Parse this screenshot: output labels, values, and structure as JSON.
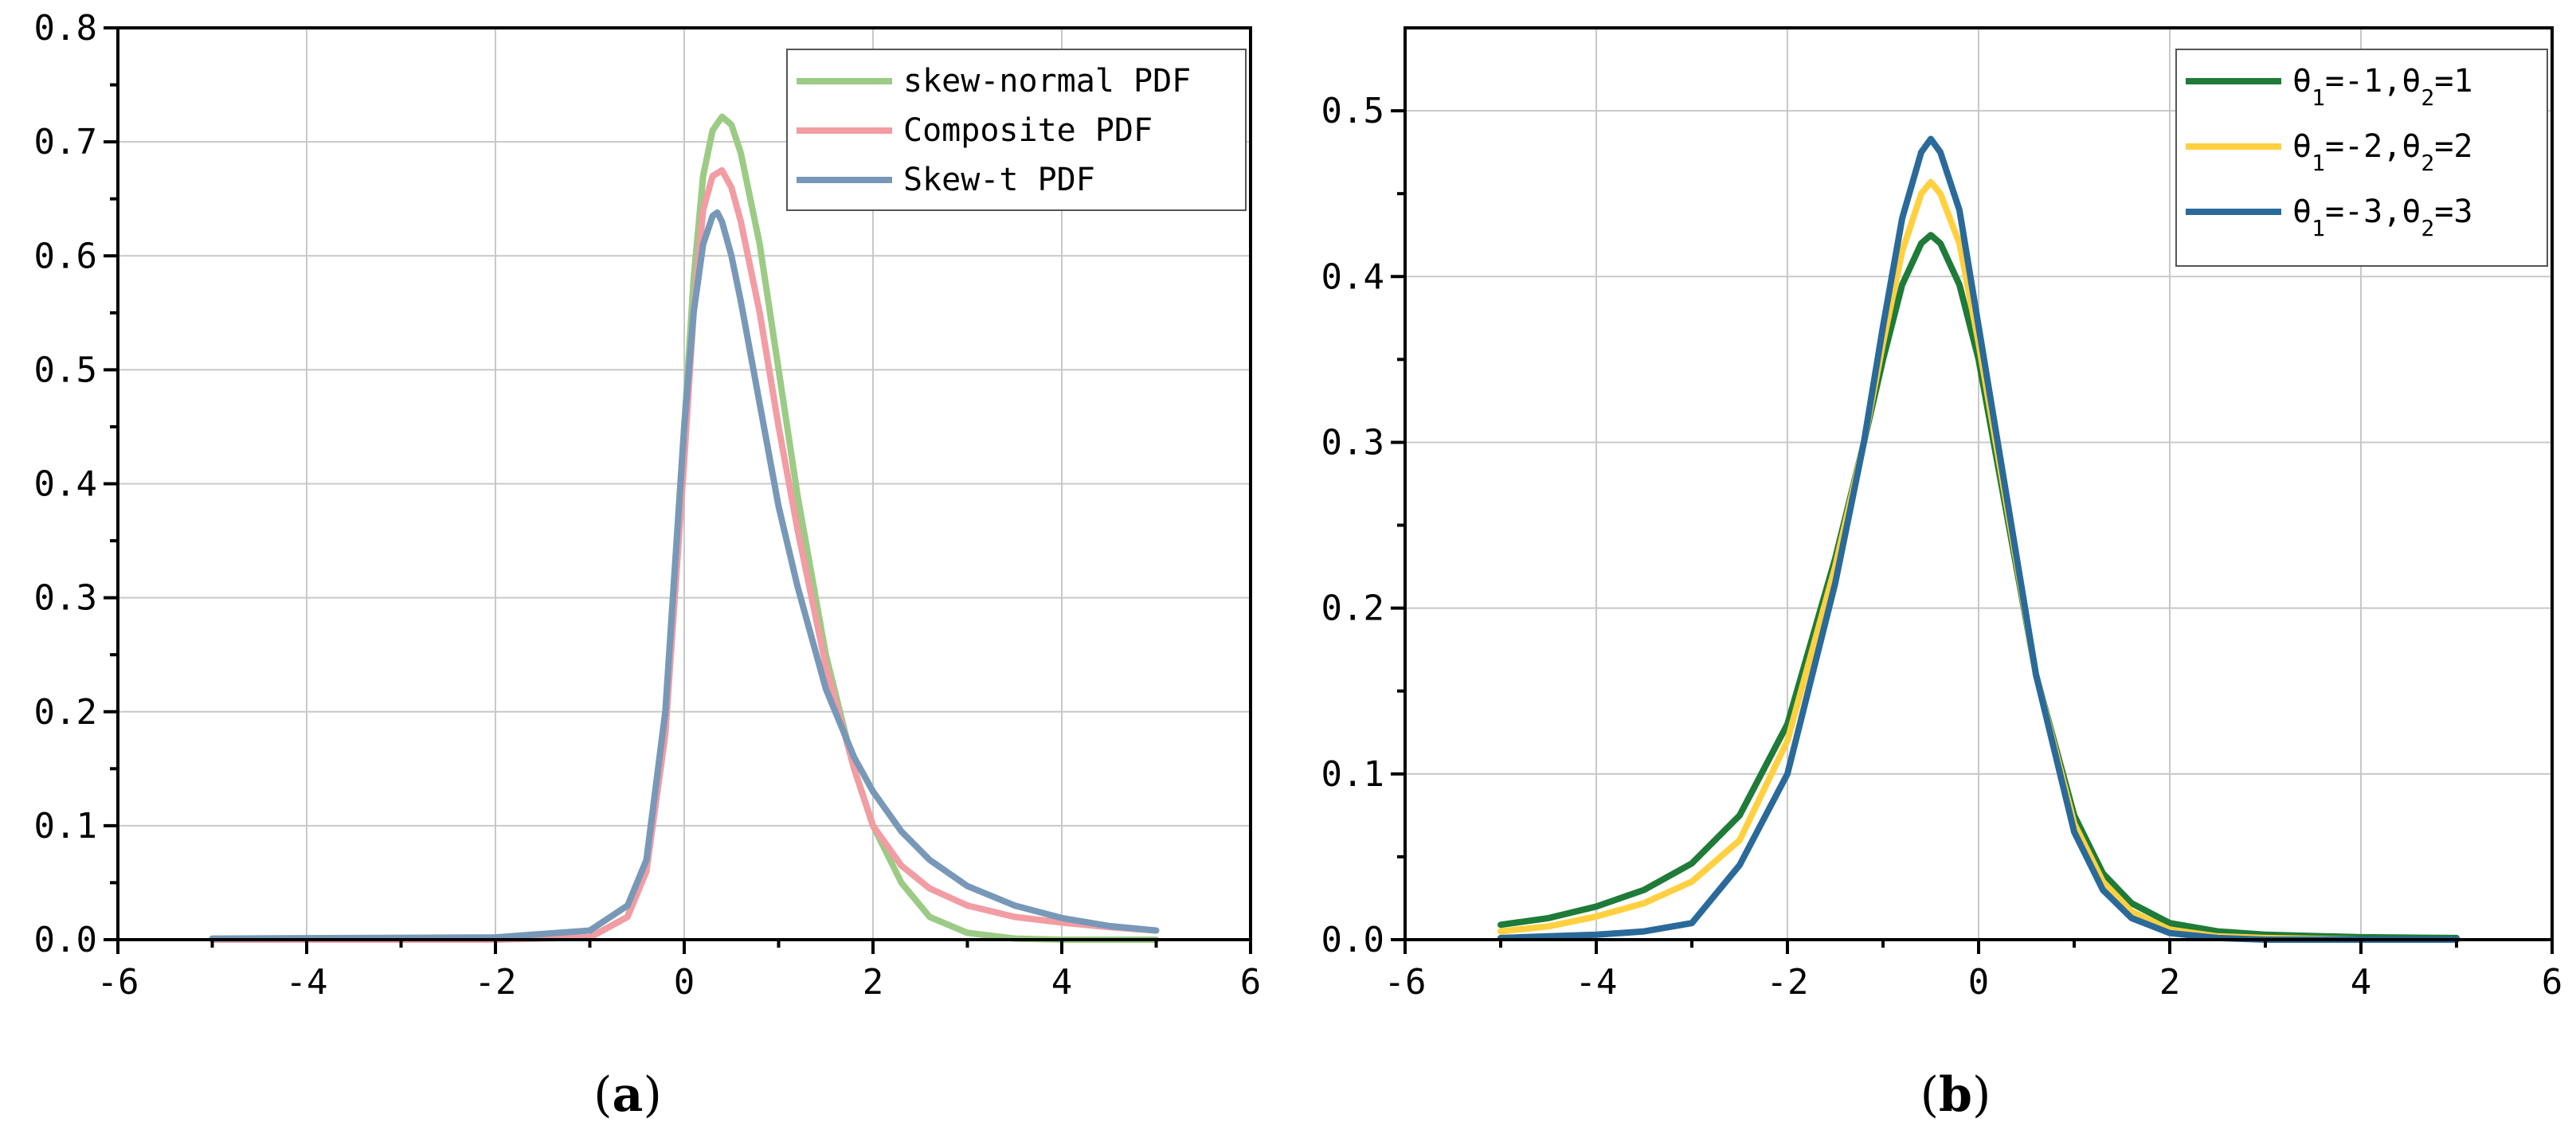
{
  "chart_data": [
    {
      "type": "line",
      "caption": {
        "open": "(",
        "letter": "a",
        "close": ")"
      },
      "xlim": [
        -6,
        6
      ],
      "ylim": [
        0,
        0.8
      ],
      "xticks": [
        -6,
        -4,
        -2,
        0,
        2,
        4,
        6
      ],
      "xtick_labels": [
        "-6",
        "-4",
        "-2",
        "0",
        "2",
        "4",
        "6"
      ],
      "yticks": [
        0,
        0.1,
        0.2,
        0.3,
        0.4,
        0.5,
        0.6,
        0.7,
        0.8
      ],
      "ytick_labels": [
        "0.0",
        "0.1",
        "0.2",
        "0.3",
        "0.4",
        "0.5",
        "0.6",
        "0.7",
        "0.8"
      ],
      "grid": true,
      "legend_position": "top-right",
      "series": [
        {
          "name": "skew-normal PDF",
          "color": "#9bcb84",
          "x": [
            -5,
            -2,
            -1,
            -0.6,
            -0.4,
            -0.2,
            0,
            0.1,
            0.2,
            0.3,
            0.4,
            0.5,
            0.6,
            0.8,
            1.0,
            1.2,
            1.5,
            1.8,
            2.0,
            2.3,
            2.6,
            3.0,
            3.5,
            4,
            5
          ],
          "y": [
            0,
            0,
            0.002,
            0.02,
            0.07,
            0.2,
            0.45,
            0.58,
            0.67,
            0.71,
            0.722,
            0.715,
            0.69,
            0.61,
            0.5,
            0.39,
            0.25,
            0.15,
            0.1,
            0.05,
            0.02,
            0.006,
            0.001,
            0,
            0
          ]
        },
        {
          "name": "Composite PDF",
          "color": "#f29ca3",
          "x": [
            -5,
            -2,
            -1,
            -0.6,
            -0.4,
            -0.2,
            0,
            0.1,
            0.2,
            0.3,
            0.4,
            0.5,
            0.6,
            0.8,
            1.0,
            1.2,
            1.5,
            1.8,
            2.0,
            2.3,
            2.6,
            3.0,
            3.5,
            4,
            4.5,
            5
          ],
          "y": [
            0,
            0,
            0.002,
            0.02,
            0.06,
            0.18,
            0.42,
            0.55,
            0.64,
            0.67,
            0.675,
            0.66,
            0.63,
            0.55,
            0.45,
            0.36,
            0.24,
            0.15,
            0.1,
            0.065,
            0.045,
            0.03,
            0.02,
            0.015,
            0.011,
            0.008
          ]
        },
        {
          "name": "Skew-t PDF",
          "color": "#7898b8",
          "x": [
            -5,
            -2,
            -1,
            -0.6,
            -0.4,
            -0.2,
            0,
            0.1,
            0.2,
            0.3,
            0.35,
            0.4,
            0.5,
            0.6,
            0.8,
            1.0,
            1.2,
            1.5,
            1.8,
            2.0,
            2.3,
            2.6,
            3.0,
            3.5,
            4,
            4.5,
            5
          ],
          "y": [
            0.001,
            0.002,
            0.008,
            0.03,
            0.07,
            0.2,
            0.45,
            0.55,
            0.61,
            0.635,
            0.638,
            0.63,
            0.6,
            0.56,
            0.47,
            0.38,
            0.31,
            0.22,
            0.16,
            0.13,
            0.095,
            0.07,
            0.047,
            0.03,
            0.019,
            0.012,
            0.008
          ]
        }
      ]
    },
    {
      "type": "line",
      "caption": {
        "open": "(",
        "letter": "b",
        "close": ")"
      },
      "xlim": [
        -6,
        6
      ],
      "ylim": [
        0,
        0.55
      ],
      "xticks": [
        -6,
        -4,
        -2,
        0,
        2,
        4,
        6
      ],
      "xtick_labels": [
        "-6",
        "-4",
        "-2",
        "0",
        "2",
        "4",
        "6"
      ],
      "yticks": [
        0,
        0.1,
        0.2,
        0.3,
        0.4,
        0.5
      ],
      "ytick_labels": [
        "0.0",
        "0.1",
        "0.2",
        "0.3",
        "0.4",
        "0.5"
      ],
      "grid": true,
      "legend_position": "top-right",
      "series": [
        {
          "name": "θ1=-1,θ2=1",
          "label_parts": [
            "θ",
            "1",
            "=-1,θ",
            "2",
            "=1"
          ],
          "color": "#1e7b38",
          "x": [
            -5,
            -4.5,
            -4,
            -3.5,
            -3,
            -2.5,
            -2,
            -1.5,
            -1.2,
            -1.0,
            -0.8,
            -0.6,
            -0.5,
            -0.4,
            -0.2,
            0,
            0.3,
            0.6,
            1.0,
            1.3,
            1.6,
            2,
            2.5,
            3,
            4,
            5
          ],
          "y": [
            0.009,
            0.013,
            0.02,
            0.03,
            0.046,
            0.075,
            0.13,
            0.23,
            0.3,
            0.35,
            0.395,
            0.42,
            0.425,
            0.42,
            0.395,
            0.35,
            0.255,
            0.16,
            0.075,
            0.04,
            0.022,
            0.01,
            0.005,
            0.003,
            0.0015,
            0.001
          ]
        },
        {
          "name": "θ1=-2,θ2=2",
          "label_parts": [
            "θ",
            "1",
            "=-2,θ",
            "2",
            "=2"
          ],
          "color": "#ffd040",
          "x": [
            -5,
            -4.5,
            -4,
            -3.5,
            -3,
            -2.5,
            -2,
            -1.5,
            -1.2,
            -1.0,
            -0.8,
            -0.6,
            -0.5,
            -0.4,
            -0.2,
            0,
            0.3,
            0.6,
            1.0,
            1.3,
            1.6,
            2,
            2.5,
            3,
            4,
            5
          ],
          "y": [
            0.005,
            0.008,
            0.014,
            0.022,
            0.035,
            0.06,
            0.12,
            0.225,
            0.3,
            0.36,
            0.415,
            0.45,
            0.457,
            0.45,
            0.42,
            0.36,
            0.26,
            0.16,
            0.07,
            0.035,
            0.017,
            0.006,
            0.002,
            0.001,
            0,
            0
          ]
        },
        {
          "name": "θ1=-3,θ2=3",
          "label_parts": [
            "θ",
            "1",
            "=-3,θ",
            "2",
            "=3"
          ],
          "color": "#2a6a9a",
          "x": [
            -5,
            -4.5,
            -4,
            -3.5,
            -3,
            -2.5,
            -2,
            -1.5,
            -1.2,
            -1.0,
            -0.8,
            -0.6,
            -0.5,
            -0.4,
            -0.2,
            0,
            0.3,
            0.6,
            1.0,
            1.3,
            1.6,
            2,
            2.5,
            3,
            4,
            5
          ],
          "y": [
            0.001,
            0.002,
            0.003,
            0.005,
            0.01,
            0.045,
            0.1,
            0.215,
            0.3,
            0.37,
            0.435,
            0.475,
            0.483,
            0.475,
            0.44,
            0.37,
            0.265,
            0.16,
            0.065,
            0.03,
            0.013,
            0.004,
            0.001,
            0,
            0,
            0
          ]
        }
      ]
    }
  ]
}
